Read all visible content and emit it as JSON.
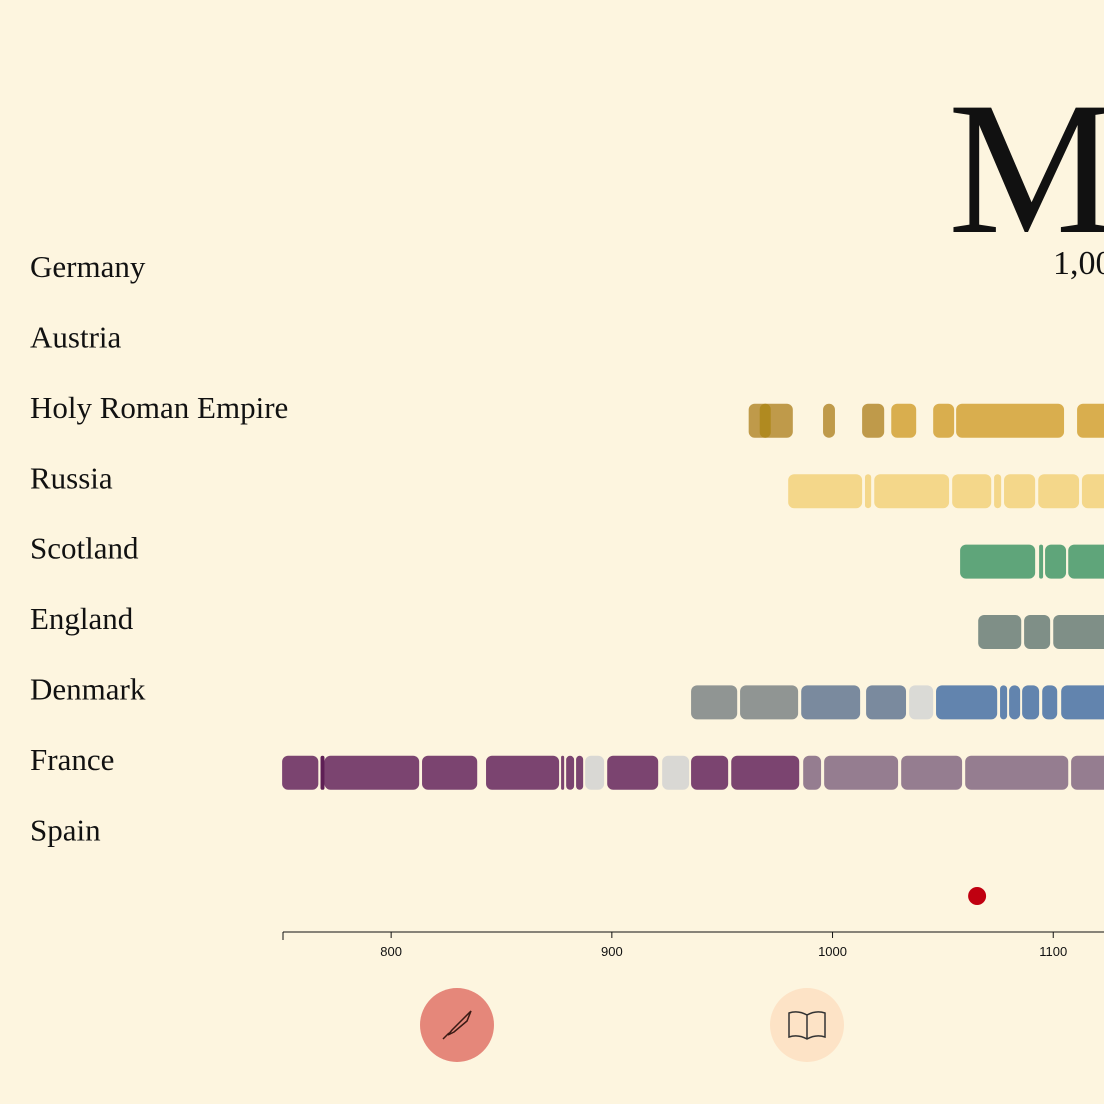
{
  "chart_data": {
    "type": "timeline",
    "title": "M",
    "subtitle": "1,00",
    "categories": [
      "Germany",
      "Austria",
      "Holy Roman Empire",
      "Russia",
      "Scotland",
      "England",
      "Denmark",
      "France",
      "Spain"
    ],
    "segments": [
      [],
      [],
      [
        {
          "start": 962,
          "end": 982,
          "color": "#bf9a4a"
        },
        {
          "start": 967,
          "end": 972,
          "color": "#b08a20"
        },
        {
          "start": 995.7,
          "end": 1001.1,
          "color": "#bf9a4a"
        },
        {
          "start": 1013.4,
          "end": 1023.4,
          "color": "#bf9a4a"
        },
        {
          "start": 1026.6,
          "end": 1037.9,
          "color": "#d9ae4e"
        },
        {
          "start": 1045.6,
          "end": 1055.1,
          "color": "#d9ae4e"
        },
        {
          "start": 1056,
          "end": 1104.9,
          "color": "#d9ae4e"
        },
        {
          "start": 1110.8,
          "end": 1130,
          "color": "#d9ae4e"
        }
      ],
      [
        {
          "start": 979.9,
          "end": 1013.4,
          "color": "#f4d78a"
        },
        {
          "start": 1014.7,
          "end": 1017.5,
          "color": "#f4d78a"
        },
        {
          "start": 1018.9,
          "end": 1052.8,
          "color": "#f4d78a"
        },
        {
          "start": 1054.2,
          "end": 1071.9,
          "color": "#f4d78a"
        },
        {
          "start": 1073.2,
          "end": 1076.4,
          "color": "#f4d78a"
        },
        {
          "start": 1077.7,
          "end": 1091.8,
          "color": "#f4d78a"
        },
        {
          "start": 1093.2,
          "end": 1111.7,
          "color": "#f4d78a"
        },
        {
          "start": 1113,
          "end": 1130,
          "color": "#f4d78a"
        }
      ],
      [
        {
          "start": 1057.8,
          "end": 1091.8,
          "color": "#5fa57a"
        },
        {
          "start": 1093.6,
          "end": 1095.4,
          "color": "#5fa57a"
        },
        {
          "start": 1096.3,
          "end": 1105.8,
          "color": "#5fa57a"
        },
        {
          "start": 1106.8,
          "end": 1130,
          "color": "#5fa57a"
        }
      ],
      [
        {
          "start": 1066,
          "end": 1085.5,
          "color": "#7f8f87"
        },
        {
          "start": 1086.8,
          "end": 1098.6,
          "color": "#7f8f87"
        },
        {
          "start": 1100,
          "end": 1130,
          "color": "#7f8f87"
        }
      ],
      [
        {
          "start": 935.9,
          "end": 956.8,
          "color": "#909593"
        },
        {
          "start": 958.1,
          "end": 984.4,
          "color": "#909593"
        },
        {
          "start": 985.8,
          "end": 1012.5,
          "color": "#7a8a9e"
        },
        {
          "start": 1015.2,
          "end": 1033.3,
          "color": "#7a8a9e"
        },
        {
          "start": 1034.7,
          "end": 1045.6,
          "color": "#dadad6"
        },
        {
          "start": 1046.9,
          "end": 1074.6,
          "color": "#6284ae"
        },
        {
          "start": 1075.9,
          "end": 1079.1,
          "color": "#6284ae"
        },
        {
          "start": 1080,
          "end": 1085,
          "color": "#6284ae"
        },
        {
          "start": 1085.9,
          "end": 1093.6,
          "color": "#6284ae"
        },
        {
          "start": 1095,
          "end": 1101.8,
          "color": "#6284ae"
        },
        {
          "start": 1103.6,
          "end": 1130,
          "color": "#6284ae"
        }
      ],
      [
        {
          "start": 750.6,
          "end": 767,
          "color": "#7b4470"
        },
        {
          "start": 768,
          "end": 769.8,
          "color": "#5e1f55"
        },
        {
          "start": 769.8,
          "end": 812.7,
          "color": "#7b4470"
        },
        {
          "start": 814,
          "end": 839,
          "color": "#7b4470"
        },
        {
          "start": 843,
          "end": 876.1,
          "color": "#7b4470"
        },
        {
          "start": 877,
          "end": 878.4,
          "color": "#7b4470"
        },
        {
          "start": 879.3,
          "end": 882.9,
          "color": "#7b4470"
        },
        {
          "start": 883.8,
          "end": 887,
          "color": "#7b4470"
        },
        {
          "start": 887.9,
          "end": 896.5,
          "color": "#d9d8d4"
        },
        {
          "start": 897.9,
          "end": 921,
          "color": "#7b4470"
        },
        {
          "start": 922.8,
          "end": 935,
          "color": "#d9d8d4"
        },
        {
          "start": 935.9,
          "end": 952.7,
          "color": "#7b4470"
        },
        {
          "start": 954.1,
          "end": 984.9,
          "color": "#7b4470"
        },
        {
          "start": 986.7,
          "end": 994.8,
          "color": "#957d90"
        },
        {
          "start": 996.2,
          "end": 1029.7,
          "color": "#957d90"
        },
        {
          "start": 1031.1,
          "end": 1058.7,
          "color": "#957d90"
        },
        {
          "start": 1060.1,
          "end": 1106.8,
          "color": "#957d90"
        },
        {
          "start": 1108.1,
          "end": 1130,
          "color": "#957d90"
        }
      ],
      []
    ],
    "markers": {
      "values": [
        1065.5
      ],
      "color": "#c00010"
    },
    "xlim": [
      751,
      1123
    ],
    "xticks": [
      800,
      900,
      1000,
      1100
    ]
  }
}
